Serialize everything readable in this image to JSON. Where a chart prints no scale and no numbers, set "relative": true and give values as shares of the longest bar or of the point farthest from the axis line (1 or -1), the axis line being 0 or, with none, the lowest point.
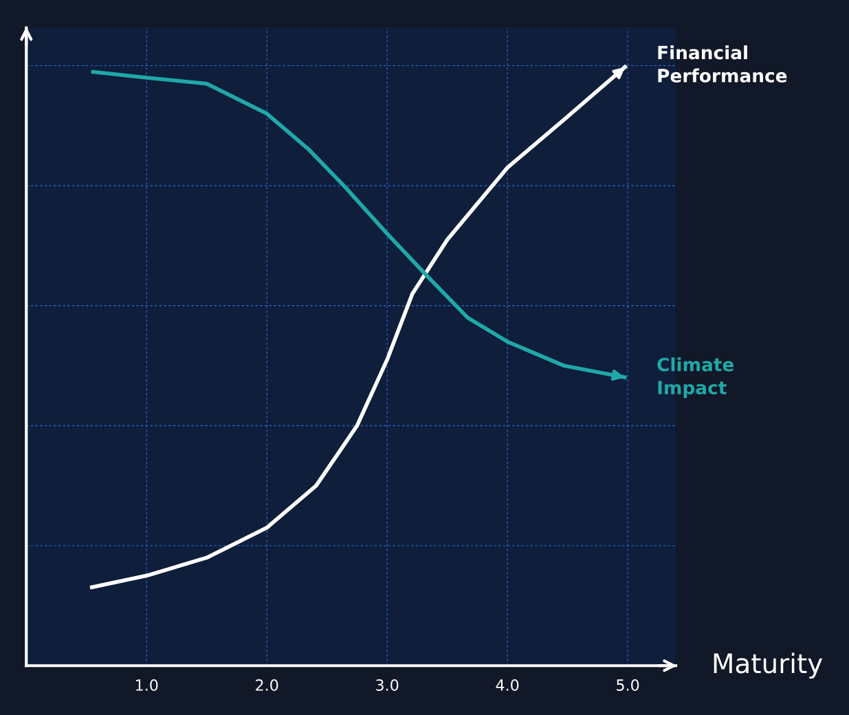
{
  "chart_data": {
    "type": "line",
    "xlabel": "Maturity",
    "relative": true,
    "xlim": [
      0,
      5.4
    ],
    "xticks": [
      {
        "value": 1,
        "label": "1.0"
      },
      {
        "value": 2,
        "label": "2.0"
      },
      {
        "value": 3,
        "label": "3.0"
      },
      {
        "value": 4,
        "label": "4.0"
      },
      {
        "value": 5,
        "label": "5.0"
      }
    ],
    "grid": true,
    "tick_labels": "x",
    "marker": "none",
    "line_style": "solid",
    "legend": "right",
    "series": [
      {
        "name": "Financial Performance",
        "color": "#ffffff",
        "x": [
          0.53,
          1.0,
          1.5,
          2.0,
          2.41,
          2.75,
          3.0,
          3.21,
          3.5,
          4.0,
          4.47,
          4.99
        ],
        "values": [
          0.13,
          0.15,
          0.18,
          0.23,
          0.3,
          0.4,
          0.51,
          0.62,
          0.71,
          0.83,
          0.91,
          1.0
        ]
      },
      {
        "name": "Climate Impact",
        "color": "#20a8a8",
        "x": [
          0.54,
          1.0,
          1.5,
          2.0,
          2.35,
          2.64,
          3.0,
          3.33,
          3.67,
          4.0,
          4.47,
          4.99
        ],
        "values": [
          0.99,
          0.98,
          0.97,
          0.92,
          0.86,
          0.8,
          0.72,
          0.65,
          0.58,
          0.54,
          0.5,
          0.48
        ]
      }
    ]
  }
}
